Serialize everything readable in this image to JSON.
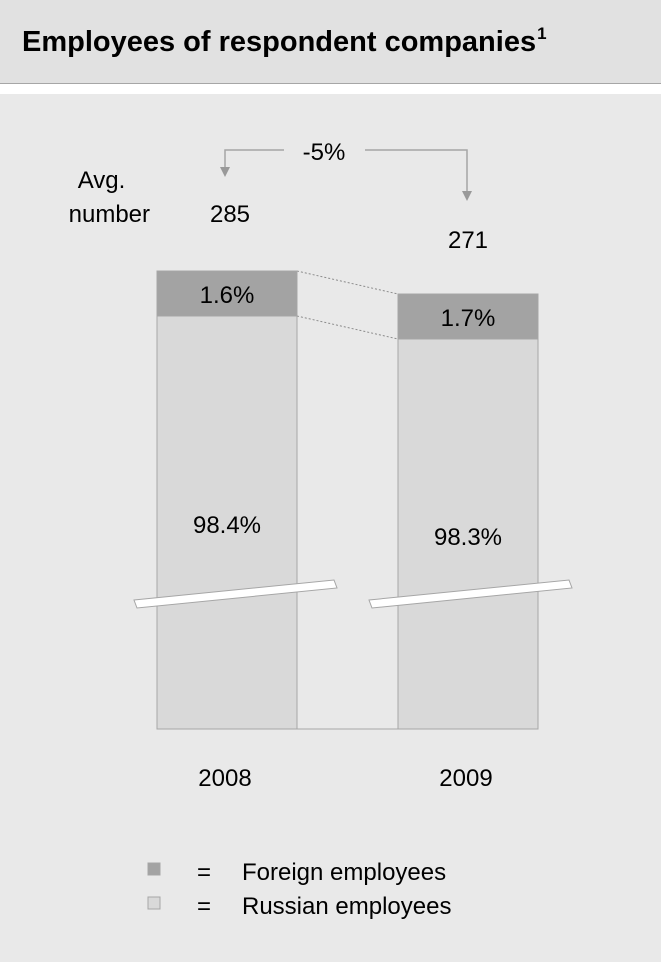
{
  "header": {
    "title": "Employees of respondent companies",
    "footnote_mark": "1"
  },
  "chart_data": {
    "type": "bar",
    "stacked": true,
    "percent_stacked": true,
    "title": "Employees of respondent companies",
    "categories": [
      "2008",
      "2009"
    ],
    "series": [
      {
        "name": "Russian employees",
        "values": [
          98.4,
          98.3
        ],
        "labels": [
          "98.4%",
          "98.3%"
        ],
        "color": "#d9d9d9"
      },
      {
        "name": "Foreign employees",
        "values": [
          1.6,
          1.7
        ],
        "labels": [
          "1.6%",
          "1.7%"
        ],
        "color": "#a3a3a3"
      }
    ],
    "totals": {
      "label": "Avg. number",
      "values": [
        285,
        271
      ]
    },
    "change_label": "-5%",
    "axis_break": true
  },
  "legend": {
    "separator": "=",
    "items": [
      {
        "label": "Foreign employees",
        "color": "#a3a3a3"
      },
      {
        "label": "Russian employees",
        "color": "#d9d9d9"
      }
    ]
  }
}
